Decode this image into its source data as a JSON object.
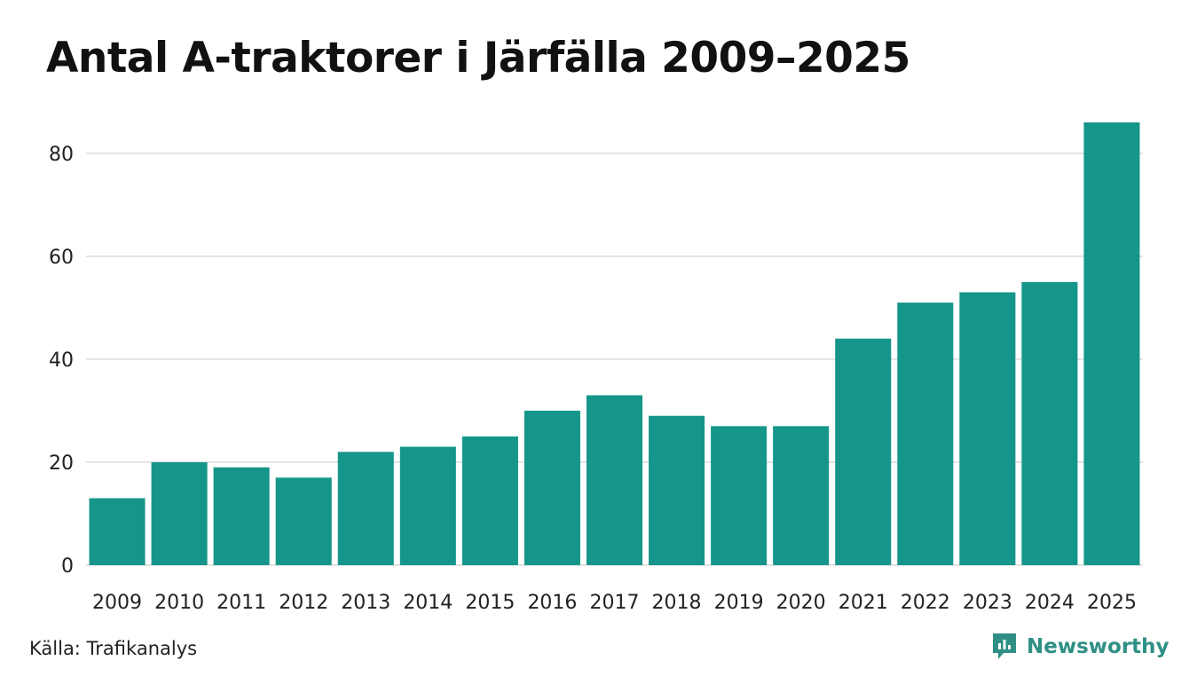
{
  "chart_data": {
    "type": "bar",
    "title": "Antal A-traktorer i Järfälla 2009–2025",
    "xlabel": "",
    "ylabel": "",
    "categories": [
      "2009",
      "2010",
      "2011",
      "2012",
      "2013",
      "2014",
      "2015",
      "2016",
      "2017",
      "2018",
      "2019",
      "2020",
      "2021",
      "2022",
      "2023",
      "2024",
      "2025"
    ],
    "values": [
      13,
      20,
      19,
      17,
      22,
      23,
      25,
      30,
      33,
      29,
      27,
      27,
      44,
      51,
      53,
      55,
      86
    ],
    "ylim": [
      0,
      86
    ],
    "yticks": [
      0,
      20,
      40,
      60,
      80
    ],
    "grid": true,
    "bar_color": "#16968a",
    "grid_color": "#e3e3e3"
  },
  "footer": {
    "source": "Källa: Trafikanalys",
    "brand": "Newsworthy",
    "brand_color": "#2f8f84"
  }
}
